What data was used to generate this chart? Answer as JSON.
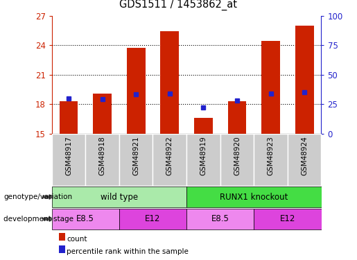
{
  "title": "GDS1511 / 1453862_at",
  "samples": [
    "GSM48917",
    "GSM48918",
    "GSM48921",
    "GSM48922",
    "GSM48919",
    "GSM48920",
    "GSM48923",
    "GSM48924"
  ],
  "count_values": [
    18.3,
    19.1,
    23.7,
    25.4,
    16.6,
    18.3,
    24.4,
    26.0
  ],
  "percentile_values": [
    18.6,
    18.5,
    19.0,
    19.1,
    17.7,
    18.4,
    19.1,
    19.2
  ],
  "ylim_left": [
    15,
    27
  ],
  "ylim_right": [
    0,
    100
  ],
  "yticks_left": [
    15,
    18,
    21,
    24,
    27
  ],
  "yticks_right": [
    0,
    25,
    50,
    75,
    100
  ],
  "bar_color": "#cc2200",
  "dot_color": "#2222cc",
  "genotype_groups": [
    {
      "label": "wild type",
      "start": 0,
      "end": 4,
      "color": "#aaeaaa"
    },
    {
      "label": "RUNX1 knockout",
      "start": 4,
      "end": 8,
      "color": "#44dd44"
    }
  ],
  "dev_stage_groups": [
    {
      "label": "E8.5",
      "start": 0,
      "end": 2,
      "color": "#ee88ee"
    },
    {
      "label": "E12",
      "start": 2,
      "end": 4,
      "color": "#dd44dd"
    },
    {
      "label": "E8.5",
      "start": 4,
      "end": 6,
      "color": "#ee88ee"
    },
    {
      "label": "E12",
      "start": 6,
      "end": 8,
      "color": "#dd44dd"
    }
  ],
  "legend_items": [
    {
      "label": "count",
      "color": "#cc2200"
    },
    {
      "label": "percentile rank within the sample",
      "color": "#2222cc"
    }
  ],
  "bar_width": 0.55,
  "left_label_color": "#cc2200",
  "right_label_color": "#2222cc",
  "xtick_bg": "#cccccc",
  "sample_cell_edge": "#ffffff",
  "left_row_labels": [
    "genotype/variation",
    "development stage"
  ],
  "arrow_color": "#555555"
}
